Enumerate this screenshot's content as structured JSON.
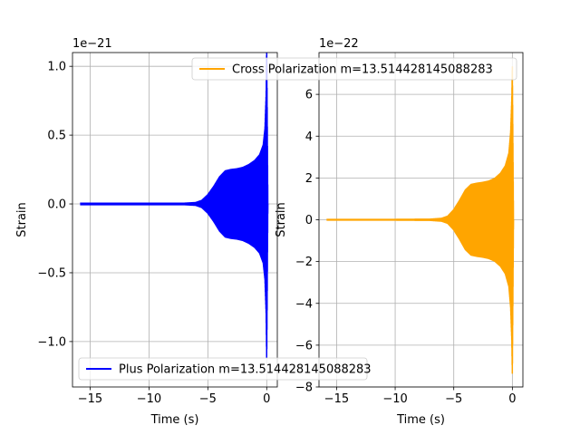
{
  "chart_data": [
    {
      "type": "line",
      "xlabel": "Time (s)",
      "ylabel": "Strain",
      "offset_text": "1e−21",
      "scale": 1e-21,
      "xlim": [
        -16.5,
        0.9
      ],
      "ylim": [
        -1.33,
        1.1
      ],
      "xticks": [
        -15,
        -10,
        -5,
        0
      ],
      "xtick_labels": [
        "−15",
        "−10",
        "−5",
        "0"
      ],
      "yticks": [
        -1.0,
        -0.5,
        0.0,
        0.5,
        1.0
      ],
      "ytick_labels": [
        "−1.0",
        "−0.5",
        "0.0",
        "0.5",
        "1.0"
      ],
      "grid": true,
      "legend_position": "lower-left",
      "series": [
        {
          "name": "Plus Polarization m=13.514428145088283",
          "color": "#0000ff",
          "envelope": {
            "t": [
              -15.8,
              -10,
              -7,
              -6,
              -5.5,
              -5,
              -4.5,
              -4,
              -3.5,
              -3,
              -2.5,
              -2,
              -1.5,
              -1,
              -0.6,
              -0.3,
              -0.15,
              -0.05,
              0.0,
              0.1
            ],
            "amp": [
              0.01,
              0.01,
              0.01,
              0.015,
              0.03,
              0.07,
              0.13,
              0.2,
              0.245,
              0.255,
              0.26,
              0.27,
              0.29,
              0.32,
              0.36,
              0.43,
              0.55,
              0.8,
              1.15,
              0.0
            ]
          }
        }
      ]
    },
    {
      "type": "line",
      "xlabel": "Time (s)",
      "ylabel": "Strain",
      "offset_text": "1e−22",
      "scale": 1e-22,
      "xlim": [
        -16.5,
        0.9
      ],
      "ylim": [
        -8.0,
        8.0
      ],
      "xticks": [
        -15,
        -10,
        -5,
        0
      ],
      "xtick_labels": [
        "−15",
        "−10",
        "−5",
        "0"
      ],
      "yticks": [
        -8,
        -6,
        -4,
        -2,
        0,
        2,
        4,
        6
      ],
      "ytick_labels": [
        "−8",
        "−6",
        "−4",
        "−2",
        "0",
        "2",
        "4",
        "6"
      ],
      "grid": true,
      "legend_position": "upper-center",
      "series": [
        {
          "name": "Cross Polarization m=13.514428145088283",
          "color": "#ffa500",
          "envelope": {
            "t": [
              -15.8,
              -10,
              -7,
              -6,
              -5.5,
              -5,
              -4.5,
              -4,
              -3.5,
              -3,
              -2.5,
              -2,
              -1.5,
              -1,
              -0.6,
              -0.3,
              -0.15,
              -0.05,
              0.0,
              0.1
            ],
            "amp": [
              0.05,
              0.05,
              0.06,
              0.1,
              0.2,
              0.5,
              0.95,
              1.45,
              1.72,
              1.78,
              1.82,
              1.88,
              2.0,
              2.25,
              2.6,
              3.2,
              4.2,
              5.8,
              7.5,
              0.0
            ]
          }
        }
      ]
    }
  ]
}
